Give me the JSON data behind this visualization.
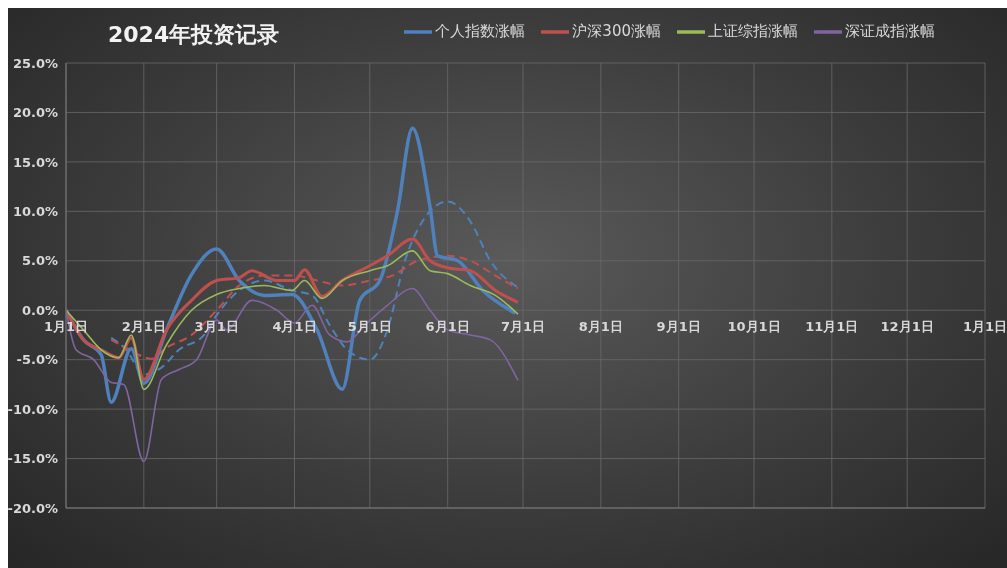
{
  "chart_data": {
    "type": "line",
    "title": "2024年投资记录",
    "legend": "top right",
    "grid": true,
    "line_style": "solid",
    "marker": "none",
    "xlim": [
      "2024-01-01",
      "2025-01-01"
    ],
    "xticks": [
      {
        "value": "2024-01-01",
        "label": "1月1日"
      },
      {
        "value": "2024-02-01",
        "label": "2月1日"
      },
      {
        "value": "2024-03-01",
        "label": "3月1日"
      },
      {
        "value": "2024-04-01",
        "label": "4月1日"
      },
      {
        "value": "2024-05-01",
        "label": "5月1日"
      },
      {
        "value": "2024-06-01",
        "label": "6月1日"
      },
      {
        "value": "2024-07-01",
        "label": "7月1日"
      },
      {
        "value": "2024-08-01",
        "label": "8月1日"
      },
      {
        "value": "2024-09-01",
        "label": "9月1日"
      },
      {
        "value": "2024-10-01",
        "label": "10月1日"
      },
      {
        "value": "2024-11-01",
        "label": "11月1日"
      },
      {
        "value": "2024-12-01",
        "label": "12月1日"
      },
      {
        "value": "2025-01-01",
        "label": "1月1日"
      }
    ],
    "ylim": [
      -20,
      25
    ],
    "yticks": [
      {
        "value": -20,
        "label": "-20.0%"
      },
      {
        "value": -15,
        "label": "-15.0%"
      },
      {
        "value": -10,
        "label": "-10.0%"
      },
      {
        "value": -5,
        "label": "-5.0%"
      },
      {
        "value": 0,
        "label": "0.0%"
      },
      {
        "value": 5,
        "label": "5.0%"
      },
      {
        "value": 10,
        "label": "10.0%"
      },
      {
        "value": 15,
        "label": "15.0%"
      },
      {
        "value": 20,
        "label": "20.0%"
      },
      {
        "value": 25,
        "label": "25.0%"
      }
    ],
    "series": [
      {
        "type": "line",
        "line_style": "dashed",
        "color": "#4f81bd",
        "x": [
          "2024-01-19",
          "2024-01-25",
          "2024-02-01",
          "2024-02-08",
          "2024-02-15",
          "2024-02-25",
          "2024-03-01",
          "2024-03-10",
          "2024-03-20",
          "2024-03-31",
          "2024-04-08",
          "2024-04-15",
          "2024-04-22",
          "2024-05-01",
          "2024-05-08",
          "2024-05-15",
          "2024-05-22",
          "2024-06-01",
          "2024-06-10",
          "2024-06-18",
          "2024-06-29"
        ],
        "values": [
          -2.8,
          -4,
          -6.5,
          -5.8,
          -4,
          -2.5,
          -0.5,
          2,
          3,
          2,
          1.5,
          -1.5,
          -4,
          -5,
          -2,
          5,
          9,
          11,
          9,
          5,
          2.3
        ]
      },
      {
        "type": "line",
        "line_style": "dashed",
        "color": "#c0504d",
        "x": [
          "2024-01-19",
          "2024-01-25",
          "2024-02-04",
          "2024-02-10",
          "2024-02-20",
          "2024-03-01",
          "2024-03-10",
          "2024-03-20",
          "2024-04-01",
          "2024-04-10",
          "2024-04-20",
          "2024-05-01",
          "2024-05-10",
          "2024-05-20",
          "2024-06-01",
          "2024-06-10",
          "2024-06-20",
          "2024-06-29"
        ],
        "values": [
          -3,
          -3.8,
          -4.9,
          -3.8,
          -2.5,
          0,
          2.5,
          3.5,
          3.5,
          3,
          2.5,
          3,
          3.5,
          5,
          5.5,
          5,
          3.5,
          2.2
        ]
      },
      {
        "name": "个人指数涨幅",
        "color": "#4f81bd",
        "x": [
          "2024-01-01",
          "2024-01-08",
          "2024-01-15",
          "2024-01-19",
          "2024-01-27",
          "2024-02-01",
          "2024-02-10",
          "2024-02-20",
          "2024-03-01",
          "2024-03-10",
          "2024-03-20",
          "2024-03-31",
          "2024-04-10",
          "2024-04-20",
          "2024-04-27",
          "2024-05-05",
          "2024-05-12",
          "2024-05-18",
          "2024-05-25",
          "2024-05-28",
          "2024-06-05",
          "2024-06-15",
          "2024-06-28"
        ],
        "values": [
          0,
          -3,
          -4.5,
          -9.3,
          -3.9,
          -7.4,
          -2,
          3.6,
          6.2,
          3,
          1.5,
          1.6,
          -2,
          -8,
          1,
          3,
          10,
          18.4,
          10.4,
          5.5,
          5,
          2,
          -0.3
        ]
      },
      {
        "name": "沪深300涨幅",
        "color": "#c0504d",
        "x": [
          "2024-01-01",
          "2024-01-08",
          "2024-01-15",
          "2024-01-22",
          "2024-01-27",
          "2024-02-01",
          "2024-02-10",
          "2024-02-20",
          "2024-03-01",
          "2024-03-10",
          "2024-03-15",
          "2024-03-25",
          "2024-04-01",
          "2024-04-05",
          "2024-04-12",
          "2024-04-20",
          "2024-05-01",
          "2024-05-08",
          "2024-05-18",
          "2024-05-25",
          "2024-06-01",
          "2024-06-10",
          "2024-06-20",
          "2024-06-29"
        ],
        "values": [
          0,
          -3,
          -4,
          -4.8,
          -2.8,
          -7,
          -2,
          1,
          3,
          3.3,
          4,
          3,
          3,
          4.1,
          1.4,
          3,
          4.5,
          5.5,
          7.2,
          5,
          4.3,
          4,
          2,
          0.8
        ]
      },
      {
        "name": "上证综指涨幅",
        "color": "#9bbb59",
        "x": [
          "2024-01-01",
          "2024-01-08",
          "2024-01-15",
          "2024-01-22",
          "2024-01-27",
          "2024-02-01",
          "2024-02-10",
          "2024-02-20",
          "2024-03-01",
          "2024-03-10",
          "2024-03-20",
          "2024-03-31",
          "2024-04-05",
          "2024-04-12",
          "2024-04-20",
          "2024-05-01",
          "2024-05-08",
          "2024-05-18",
          "2024-05-25",
          "2024-06-01",
          "2024-06-10",
          "2024-06-20",
          "2024-06-29"
        ],
        "values": [
          0,
          -2,
          -4,
          -4.8,
          -2.5,
          -8,
          -3.5,
          0,
          1.6,
          2.2,
          2.5,
          2,
          3,
          1.2,
          3,
          4,
          4.5,
          6,
          4,
          3.7,
          2.5,
          1.5,
          -0.4
        ]
      },
      {
        "name": "深证成指涨幅",
        "color": "#8064a2",
        "x": [
          "2024-01-01",
          "2024-01-05",
          "2024-01-12",
          "2024-01-19",
          "2024-01-24",
          "2024-02-01",
          "2024-02-08",
          "2024-02-15",
          "2024-02-22",
          "2024-03-01",
          "2024-03-05",
          "2024-03-15",
          "2024-03-25",
          "2024-04-01",
          "2024-04-08",
          "2024-04-15",
          "2024-04-22",
          "2024-04-29",
          "2024-05-08",
          "2024-05-18",
          "2024-05-25",
          "2024-06-01",
          "2024-06-10",
          "2024-06-18",
          "2024-06-29"
        ],
        "values": [
          0,
          -4,
          -5,
          -7.3,
          -7.5,
          -15.3,
          -7,
          -6,
          -5,
          -1,
          -2,
          1,
          0,
          -1.3,
          0.5,
          -2.5,
          -3.2,
          -1.5,
          0.5,
          2.2,
          0,
          -2,
          -2.5,
          -3,
          -7.1
        ]
      }
    ]
  }
}
